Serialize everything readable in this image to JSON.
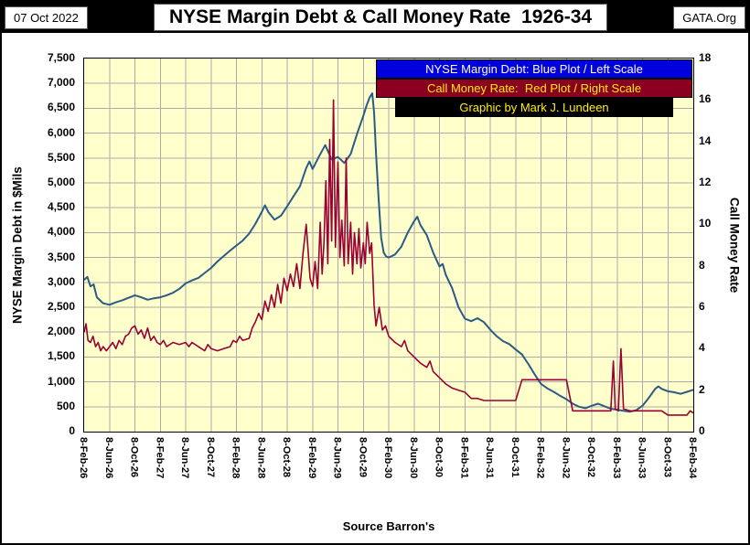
{
  "header": {
    "date": "07 Oct 2022",
    "title": "NYSE Margin Debt & Call Money Rate  1926-34",
    "site": "GATA.Org"
  },
  "legend": {
    "blue": "NYSE Margin Debt: Blue Plot / Left Scale",
    "red": "Call Money Rate:  Red Plot / Right Scale",
    "credit": "Graphic by Mark J. Lundeen"
  },
  "source_note": "Source Barron's",
  "colors": {
    "plot_bg": "#FFFFCC",
    "grid": "#ABABAB",
    "blue_line": "#2A5B84",
    "red_line": "#990033",
    "legend_blue": "#0000DD",
    "legend_red": "#8B0020",
    "legend_black": "#000000",
    "legend_text_white": "#FFFFFF",
    "legend_text_yellow": "#FFEE00"
  },
  "chart_data": {
    "type": "line",
    "title": "NYSE Margin Debt & Call Money Rate  1926-34",
    "x_unit": "months since 8-Feb-1926 (weekly Barron's data)",
    "x_range": [
      0,
      96
    ],
    "grid": true,
    "legend_position": "top-right",
    "x_tick_labels": [
      "8-Feb-26",
      "8-Jun-26",
      "8-Oct-26",
      "8-Feb-27",
      "8-Jun-27",
      "8-Oct-27",
      "8-Feb-28",
      "8-Jun-28",
      "8-Oct-28",
      "8-Feb-29",
      "8-Jun-29",
      "8-Oct-29",
      "8-Feb-30",
      "8-Jun-30",
      "8-Oct-30",
      "8-Feb-31",
      "8-Jun-31",
      "8-Oct-31",
      "8-Feb-32",
      "8-Jun-32",
      "8-Oct-32",
      "8-Feb-33",
      "8-Jun-33",
      "8-Oct-33",
      "8-Feb-34"
    ],
    "left_axis": {
      "title": "NYSE Margin Debt in $Mils",
      "lim": [
        0,
        7500
      ],
      "tick_step": 500,
      "tick_labels": [
        "7,500",
        "7,000",
        "6,500",
        "6,000",
        "5,500",
        "5,000",
        "4,500",
        "4,000",
        "3,500",
        "3,000",
        "2,500",
        "2,000",
        "1,500",
        "1,000",
        "500",
        "0"
      ]
    },
    "right_axis": {
      "title": "Call Money Rate",
      "lim": [
        0,
        18
      ],
      "tick_step": 2,
      "tick_labels": [
        "18",
        "16",
        "14",
        "12",
        "10",
        "8",
        "6",
        "4",
        "2",
        "0"
      ]
    },
    "series": [
      {
        "name": "NYSE Margin Debt ($Mils)",
        "axis": "left",
        "color": "#2A5B84",
        "points": [
          [
            0,
            3050
          ],
          [
            0.5,
            3110
          ],
          [
            1,
            2920
          ],
          [
            1.5,
            2960
          ],
          [
            2,
            2700
          ],
          [
            3,
            2580
          ],
          [
            4,
            2550
          ],
          [
            5,
            2600
          ],
          [
            6,
            2640
          ],
          [
            7,
            2690
          ],
          [
            8,
            2740
          ],
          [
            9,
            2700
          ],
          [
            10,
            2650
          ],
          [
            11,
            2680
          ],
          [
            12,
            2700
          ],
          [
            13,
            2740
          ],
          [
            14,
            2790
          ],
          [
            15,
            2870
          ],
          [
            16,
            2980
          ],
          [
            17,
            3040
          ],
          [
            18,
            3090
          ],
          [
            19,
            3190
          ],
          [
            20,
            3290
          ],
          [
            21,
            3420
          ],
          [
            22,
            3530
          ],
          [
            23,
            3640
          ],
          [
            24,
            3740
          ],
          [
            25,
            3840
          ],
          [
            26,
            3980
          ],
          [
            27,
            4180
          ],
          [
            28,
            4420
          ],
          [
            28.5,
            4550
          ],
          [
            29,
            4420
          ],
          [
            30,
            4260
          ],
          [
            31,
            4340
          ],
          [
            32,
            4530
          ],
          [
            33,
            4730
          ],
          [
            34,
            4930
          ],
          [
            35,
            5300
          ],
          [
            35.5,
            5430
          ],
          [
            36,
            5280
          ],
          [
            37,
            5530
          ],
          [
            38,
            5760
          ],
          [
            39,
            5470
          ],
          [
            40,
            5520
          ],
          [
            41,
            5400
          ],
          [
            42,
            5580
          ],
          [
            43,
            5980
          ],
          [
            44,
            6350
          ],
          [
            44.5,
            6550
          ],
          [
            45,
            6720
          ],
          [
            45.4,
            6800
          ],
          [
            45.7,
            6420
          ],
          [
            46,
            5600
          ],
          [
            46.4,
            4700
          ],
          [
            46.8,
            3900
          ],
          [
            47.2,
            3600
          ],
          [
            47.6,
            3520
          ],
          [
            48,
            3500
          ],
          [
            49,
            3560
          ],
          [
            50,
            3720
          ],
          [
            51,
            4000
          ],
          [
            52,
            4230
          ],
          [
            52.5,
            4320
          ],
          [
            53,
            4150
          ],
          [
            54,
            3950
          ],
          [
            55,
            3600
          ],
          [
            56,
            3320
          ],
          [
            56.5,
            3370
          ],
          [
            57,
            3150
          ],
          [
            58,
            2880
          ],
          [
            59,
            2500
          ],
          [
            60,
            2270
          ],
          [
            61,
            2220
          ],
          [
            62,
            2280
          ],
          [
            63,
            2200
          ],
          [
            64,
            2050
          ],
          [
            65,
            1920
          ],
          [
            66,
            1820
          ],
          [
            67,
            1760
          ],
          [
            68,
            1650
          ],
          [
            69,
            1550
          ],
          [
            70,
            1360
          ],
          [
            71,
            1150
          ],
          [
            72,
            960
          ],
          [
            73,
            870
          ],
          [
            74,
            800
          ],
          [
            75,
            720
          ],
          [
            76,
            650
          ],
          [
            77,
            560
          ],
          [
            78,
            500
          ],
          [
            79,
            470
          ],
          [
            80,
            520
          ],
          [
            81,
            560
          ],
          [
            82,
            510
          ],
          [
            83,
            460
          ],
          [
            84,
            440
          ],
          [
            85,
            420
          ],
          [
            86,
            400
          ],
          [
            87,
            430
          ],
          [
            88,
            520
          ],
          [
            89,
            680
          ],
          [
            90,
            860
          ],
          [
            90.5,
            910
          ],
          [
            91,
            860
          ],
          [
            92,
            810
          ],
          [
            93,
            790
          ],
          [
            94,
            760
          ],
          [
            95,
            800
          ],
          [
            96,
            840
          ]
        ]
      },
      {
        "name": "Call Money Rate (%)",
        "axis": "right",
        "color": "#990033",
        "points": [
          [
            0,
            4.8
          ],
          [
            0.3,
            5.2
          ],
          [
            0.6,
            4.4
          ],
          [
            1,
            4.3
          ],
          [
            1.4,
            4.6
          ],
          [
            1.8,
            4.1
          ],
          [
            2.2,
            4.3
          ],
          [
            2.6,
            3.9
          ],
          [
            3,
            4.1
          ],
          [
            3.5,
            3.9
          ],
          [
            4,
            4.1
          ],
          [
            4.5,
            4.3
          ],
          [
            5,
            4.0
          ],
          [
            5.5,
            4.4
          ],
          [
            6,
            4.2
          ],
          [
            6.5,
            4.6
          ],
          [
            7,
            4.7
          ],
          [
            7.5,
            5.0
          ],
          [
            8,
            5.1
          ],
          [
            8.5,
            4.7
          ],
          [
            9,
            4.9
          ],
          [
            9.5,
            4.5
          ],
          [
            10,
            5.0
          ],
          [
            10.5,
            4.4
          ],
          [
            11,
            4.6
          ],
          [
            11.5,
            4.3
          ],
          [
            12,
            4.2
          ],
          [
            12.5,
            4.4
          ],
          [
            13,
            4.1
          ],
          [
            14,
            4.3
          ],
          [
            15,
            4.2
          ],
          [
            16,
            4.3
          ],
          [
            16.5,
            4.1
          ],
          [
            17,
            4.3
          ],
          [
            18,
            4.1
          ],
          [
            19,
            3.9
          ],
          [
            19.5,
            4.2
          ],
          [
            20,
            4.0
          ],
          [
            21,
            3.9
          ],
          [
            22,
            4.0
          ],
          [
            23,
            4.1
          ],
          [
            23.5,
            4.4
          ],
          [
            24,
            4.3
          ],
          [
            24.5,
            4.6
          ],
          [
            25,
            4.4
          ],
          [
            26,
            4.5
          ],
          [
            26.5,
            5.0
          ],
          [
            27,
            5.3
          ],
          [
            27.5,
            5.7
          ],
          [
            28,
            5.4
          ],
          [
            28.5,
            6.3
          ],
          [
            29,
            5.8
          ],
          [
            29.5,
            6.6
          ],
          [
            30,
            6.0
          ],
          [
            30.5,
            7.1
          ],
          [
            31,
            6.2
          ],
          [
            31.5,
            7.4
          ],
          [
            32,
            6.8
          ],
          [
            32.5,
            7.6
          ],
          [
            33,
            7.0
          ],
          [
            33.5,
            8.1
          ],
          [
            34,
            6.9
          ],
          [
            34.5,
            8.6
          ],
          [
            35,
            10.0
          ],
          [
            35.3,
            8.7
          ],
          [
            35.6,
            7.4
          ],
          [
            36,
            7.0
          ],
          [
            36.4,
            8.2
          ],
          [
            36.8,
            6.9
          ],
          [
            37.2,
            10.1
          ],
          [
            37.5,
            7.6
          ],
          [
            37.8,
            9.1
          ],
          [
            38.1,
            12.1
          ],
          [
            38.4,
            8.1
          ],
          [
            38.7,
            14.1
          ],
          [
            39,
            9.2
          ],
          [
            39.3,
            16.0
          ],
          [
            39.6,
            8.9
          ],
          [
            40,
            13.0
          ],
          [
            40.3,
            8.4
          ],
          [
            40.6,
            10.2
          ],
          [
            41,
            8.0
          ],
          [
            41.3,
            13.2
          ],
          [
            41.6,
            8.1
          ],
          [
            42,
            10.1
          ],
          [
            42.3,
            7.6
          ],
          [
            42.6,
            9.6
          ],
          [
            43,
            8.1
          ],
          [
            43.3,
            9.8
          ],
          [
            43.6,
            7.9
          ],
          [
            44,
            9.1
          ],
          [
            44.3,
            8.1
          ],
          [
            44.6,
            10.1
          ],
          [
            45,
            8.6
          ],
          [
            45.3,
            9.1
          ],
          [
            45.7,
            6.1
          ],
          [
            46,
            5.1
          ],
          [
            46.5,
            6.0
          ],
          [
            47,
            4.9
          ],
          [
            47.5,
            5.1
          ],
          [
            48,
            4.6
          ],
          [
            49,
            4.3
          ],
          [
            50,
            4.1
          ],
          [
            50.5,
            4.4
          ],
          [
            51,
            3.9
          ],
          [
            52,
            3.6
          ],
          [
            53,
            3.3
          ],
          [
            54,
            3.1
          ],
          [
            54.5,
            3.4
          ],
          [
            55,
            2.9
          ],
          [
            56,
            2.6
          ],
          [
            57,
            2.3
          ],
          [
            58,
            2.1
          ],
          [
            59,
            2.0
          ],
          [
            60,
            1.9
          ],
          [
            61,
            1.6
          ],
          [
            62,
            1.6
          ],
          [
            63,
            1.5
          ],
          [
            64,
            1.5
          ],
          [
            65,
            1.5
          ],
          [
            66,
            1.5
          ],
          [
            67,
            1.5
          ],
          [
            68,
            1.5
          ],
          [
            69,
            2.5
          ],
          [
            70,
            2.5
          ],
          [
            71,
            2.5
          ],
          [
            72,
            2.5
          ],
          [
            73,
            2.5
          ],
          [
            74,
            2.5
          ],
          [
            75,
            2.5
          ],
          [
            76,
            2.5
          ],
          [
            77,
            1.0
          ],
          [
            78,
            1.0
          ],
          [
            79,
            1.0
          ],
          [
            80,
            1.0
          ],
          [
            81,
            1.0
          ],
          [
            82,
            1.0
          ],
          [
            83,
            1.0
          ],
          [
            83.4,
            3.4
          ],
          [
            83.7,
            1.1
          ],
          [
            84.2,
            1.0
          ],
          [
            84.6,
            4.0
          ],
          [
            85,
            1.1
          ],
          [
            86,
            1.0
          ],
          [
            87,
            1.0
          ],
          [
            88,
            1.0
          ],
          [
            89,
            1.0
          ],
          [
            90,
            1.0
          ],
          [
            91,
            1.0
          ],
          [
            92,
            0.8
          ],
          [
            93,
            0.8
          ],
          [
            94,
            0.8
          ],
          [
            95,
            0.8
          ],
          [
            95.5,
            1.0
          ],
          [
            96,
            0.9
          ]
        ]
      }
    ]
  }
}
